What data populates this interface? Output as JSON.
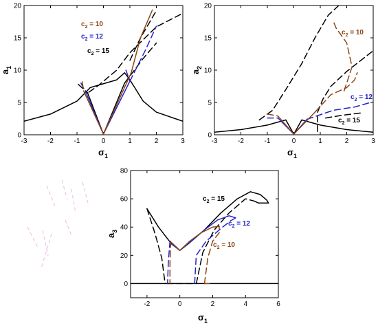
{
  "chart_data": [
    {
      "type": "line",
      "xlabel": "σ",
      "xlabel_sub": "1",
      "ylabel": "a",
      "ylabel_sub": "1",
      "xlim": [
        -3,
        3
      ],
      "ylim": [
        0,
        20
      ],
      "xticks": [
        "-3",
        "-2",
        "-1",
        "0",
        "1",
        "2",
        "3"
      ],
      "yticks": [
        "0",
        "5",
        "10",
        "15",
        "20"
      ],
      "labels": [
        {
          "prefix": "c",
          "sub": "2",
          "text": " = 10",
          "color": "#8B4513"
        },
        {
          "prefix": "c",
          "sub": "2",
          "text": " = 12",
          "color": "#2222cc"
        },
        {
          "prefix": "c",
          "sub": "2",
          "text": " = 15",
          "color": "#000000"
        }
      ],
      "series": [
        {
          "color": "#000000",
          "style": "solid",
          "points": [
            [
              -3,
              2.1
            ],
            [
              -2,
              3.2
            ],
            [
              -1,
              5.2
            ],
            [
              -0.5,
              7.3
            ],
            [
              0.5,
              8.5
            ],
            [
              0.8,
              9.6
            ],
            [
              1.0,
              8.5
            ],
            [
              1.5,
              5.2
            ],
            [
              2,
              3.5
            ],
            [
              3,
              2.1
            ]
          ]
        },
        {
          "color": "#000000",
          "style": "dash",
          "points": [
            [
              -0.55,
              6.6
            ],
            [
              -0.2,
              7.6
            ],
            [
              0.5,
              10
            ],
            [
              1,
              12.7
            ],
            [
              2,
              16.7
            ],
            [
              3,
              18.8
            ]
          ]
        },
        {
          "color": "#000000",
          "style": "solid",
          "points": [
            [
              -0.6,
              6.5
            ],
            [
              0,
              0.1
            ],
            [
              0.8,
              8.0
            ]
          ]
        },
        {
          "color": "#000000",
          "style": "dash",
          "points": [
            [
              -0.95,
              7.8
            ],
            [
              -0.6,
              6.5
            ]
          ]
        },
        {
          "color": "#000000",
          "style": "dash",
          "points": [
            [
              0.8,
              8.0
            ],
            [
              1.5,
              11.8
            ],
            [
              2,
              14.2
            ]
          ]
        },
        {
          "color": "#000000",
          "style": "dash",
          "points": [
            [
              1.0,
              11.5
            ],
            [
              1.4,
              15
            ],
            [
              2.0,
              19.2
            ]
          ]
        },
        {
          "color": "#2222cc",
          "style": "solid",
          "points": [
            [
              -0.65,
              6.4
            ],
            [
              0,
              0.1
            ],
            [
              1.0,
              8.3
            ]
          ]
        },
        {
          "color": "#2222cc",
          "style": "dash",
          "points": [
            [
              -0.85,
              8.0
            ],
            [
              -0.65,
              6.4
            ]
          ]
        },
        {
          "color": "#2222cc",
          "style": "dash",
          "points": [
            [
              1.0,
              8.3
            ],
            [
              1.6,
              13.2
            ],
            [
              2,
              16.8
            ]
          ]
        },
        {
          "color": "#2222cc",
          "style": "dash",
          "points": [
            [
              0.85,
              10
            ],
            [
              1.0,
              8.3
            ]
          ]
        },
        {
          "color": "#8B4513",
          "style": "solid",
          "points": [
            [
              -0.75,
              6.8
            ],
            [
              0,
              0.1
            ],
            [
              1.05,
              9.6
            ],
            [
              1.4,
              15
            ],
            [
              1.85,
              19.3
            ]
          ]
        },
        {
          "color": "#8B4513",
          "style": "dash",
          "points": [
            [
              -0.8,
              8.2
            ],
            [
              -0.75,
              6.8
            ]
          ]
        }
      ]
    },
    {
      "type": "line",
      "xlabel": "σ",
      "xlabel_sub": "1",
      "ylabel": "a",
      "ylabel_sub": "2",
      "xlim": [
        -3,
        3
      ],
      "ylim": [
        0,
        20
      ],
      "xticks": [
        "-3",
        "-2",
        "-1",
        "0",
        "1",
        "2",
        "3"
      ],
      "yticks": [
        "0",
        "5",
        "10",
        "15",
        "20"
      ],
      "labels": [
        {
          "prefix": "c",
          "sub": "2",
          "text": " = 10",
          "color": "#8B4513"
        },
        {
          "prefix": "c",
          "sub": "2",
          "text": " = 12",
          "color": "#2222cc"
        },
        {
          "prefix": "c",
          "sub": "2",
          "text": " = 15",
          "color": "#000000"
        }
      ],
      "series": [
        {
          "color": "#000000",
          "style": "solid",
          "points": [
            [
              -3,
              0.4
            ],
            [
              -2,
              0.8
            ],
            [
              -1,
              1.5
            ],
            [
              -0.3,
              2.3
            ],
            [
              0,
              0.1
            ]
          ]
        },
        {
          "color": "#000000",
          "style": "solid",
          "points": [
            [
              0,
              0.1
            ],
            [
              0.3,
              2.3
            ],
            [
              1,
              1.5
            ],
            [
              2,
              0.8
            ],
            [
              3,
              0.4
            ]
          ]
        },
        {
          "color": "#000000",
          "style": "dash",
          "points": [
            [
              -1.3,
              2.3
            ],
            [
              -0.8,
              3.8
            ],
            [
              -0.3,
              7
            ],
            [
              0.3,
              11
            ],
            [
              0.8,
              15
            ],
            [
              1.3,
              18.5
            ],
            [
              1.7,
              20
            ]
          ]
        },
        {
          "color": "#000000",
          "style": "dash",
          "points": [
            [
              0.9,
              0.5
            ],
            [
              0.9,
              3.5
            ],
            [
              1.1,
              5.5
            ],
            [
              1.4,
              7.5
            ],
            [
              2,
              9.8
            ],
            [
              3,
              13
            ]
          ]
        },
        {
          "color": "#000000",
          "style": "dash",
          "points": [
            [
              1.2,
              2.6
            ],
            [
              1.8,
              3.0
            ],
            [
              2.6,
              3.4
            ]
          ]
        },
        {
          "color": "#2222cc",
          "style": "solid",
          "points": [
            [
              -0.6,
              2.6
            ],
            [
              0,
              0.1
            ],
            [
              0.5,
              2.4
            ]
          ]
        },
        {
          "color": "#2222cc",
          "style": "dash",
          "points": [
            [
              0.5,
              2.4
            ],
            [
              1.5,
              3.8
            ],
            [
              2.3,
              4.3
            ],
            [
              2.9,
              5.0
            ]
          ]
        },
        {
          "color": "#2222cc",
          "style": "dash",
          "points": [
            [
              -1.0,
              2.6
            ],
            [
              -0.6,
              2.6
            ]
          ]
        },
        {
          "color": "#8B4513",
          "style": "solid",
          "points": [
            [
              -0.6,
              2.9
            ],
            [
              0,
              0.1
            ],
            [
              0.8,
              3.5
            ]
          ]
        },
        {
          "color": "#8B4513",
          "style": "dash",
          "points": [
            [
              -1.0,
              3.2
            ],
            [
              -0.6,
              2.9
            ]
          ]
        },
        {
          "color": "#8B4513",
          "style": "dash",
          "points": [
            [
              0.8,
              3.5
            ],
            [
              1.4,
              6.2
            ],
            [
              2.0,
              7.3
            ],
            [
              2.3,
              8.5
            ],
            [
              2.4,
              9.6
            ]
          ]
        },
        {
          "color": "#8B4513",
          "style": "dash",
          "points": [
            [
              1.9,
              6.8
            ],
            [
              2.2,
              10.5
            ],
            [
              2.0,
              14.2
            ],
            [
              1.6,
              16.5
            ],
            [
              1.5,
              17.5
            ]
          ]
        }
      ]
    },
    {
      "type": "line",
      "xlabel": "σ",
      "xlabel_sub": "1",
      "ylabel": "a",
      "ylabel_sub": "3",
      "xlim": [
        -3,
        6
      ],
      "ylim": [
        -10,
        80
      ],
      "xticks": [
        "-2",
        "0",
        "2",
        "4",
        "6"
      ],
      "yticks": [
        "0",
        "20",
        "40",
        "60",
        "80"
      ],
      "labels": [
        {
          "prefix": "c",
          "sub": "2",
          "text": " = 15",
          "color": "#000000"
        },
        {
          "prefix": "c",
          "sub": "2",
          "text": " = 12",
          "color": "#2222cc"
        },
        {
          "prefix": "c",
          "sub": "2",
          "text": " = 10",
          "color": "#8B4513"
        }
      ],
      "series": [
        {
          "color": "#000000",
          "style": "solid",
          "points": [
            [
              -3,
              0
            ],
            [
              6,
              0
            ]
          ]
        },
        {
          "color": "#000000",
          "style": "solid",
          "points": [
            [
              -2,
              53
            ],
            [
              -1.3,
              40
            ],
            [
              -0.5,
              28
            ],
            [
              0,
              23.5
            ],
            [
              0.5,
              28
            ],
            [
              1.5,
              38
            ],
            [
              2.5,
              50
            ],
            [
              3.5,
              60
            ],
            [
              4.3,
              65
            ],
            [
              4.9,
              63
            ],
            [
              5.3,
              59
            ],
            [
              5.4,
              57
            ],
            [
              4.8,
              57
            ],
            [
              4.5,
              58.5
            ]
          ]
        },
        {
          "color": "#000000",
          "style": "dash",
          "points": [
            [
              -2,
              53
            ],
            [
              -1.5,
              35
            ],
            [
              -1.1,
              18
            ],
            [
              -0.9,
              0
            ]
          ]
        },
        {
          "color": "#000000",
          "style": "dash",
          "points": [
            [
              -0.8,
              0
            ],
            [
              -0.3,
              0
            ],
            [
              0.2,
              0
            ],
            [
              0.9,
              0
            ]
          ]
        },
        {
          "color": "#000000",
          "style": "dash",
          "points": [
            [
              1.0,
              0
            ],
            [
              1.4,
              22
            ],
            [
              2.1,
              38
            ],
            [
              3.0,
              50
            ],
            [
              4.0,
              60
            ],
            [
              4.5,
              58.5
            ]
          ]
        },
        {
          "color": "#2222cc",
          "style": "solid",
          "points": [
            [
              -0.5,
              28
            ],
            [
              0,
              23.5
            ],
            [
              0.6,
              29
            ],
            [
              1.5,
              38
            ],
            [
              2.3,
              45
            ],
            [
              3.0,
              48
            ],
            [
              3.4,
              46.5
            ],
            [
              3.1,
              44.5
            ]
          ]
        },
        {
          "color": "#2222cc",
          "style": "dash",
          "points": [
            [
              -0.6,
              30
            ],
            [
              -0.7,
              15
            ],
            [
              -0.75,
              0
            ]
          ]
        },
        {
          "color": "#2222cc",
          "style": "dash",
          "points": [
            [
              0.9,
              0
            ],
            [
              1.0,
              20
            ],
            [
              1.6,
              30
            ],
            [
              2.5,
              39
            ],
            [
              3.1,
              44.5
            ]
          ]
        },
        {
          "color": "#8B4513",
          "style": "solid",
          "points": [
            [
              -0.5,
              29
            ],
            [
              0,
              23.5
            ],
            [
              0.6,
              30
            ],
            [
              1.3,
              36
            ],
            [
              2.0,
              40
            ],
            [
              2.4,
              40.5
            ]
          ]
        },
        {
          "color": "#8B4513",
          "style": "dash",
          "points": [
            [
              -0.55,
              30
            ],
            [
              -0.6,
              15
            ],
            [
              -0.6,
              0
            ]
          ]
        },
        {
          "color": "#8B4513",
          "style": "dash",
          "points": [
            [
              1.5,
              0
            ],
            [
              1.7,
              18
            ],
            [
              2.0,
              30
            ],
            [
              2.4,
              36
            ],
            [
              2.4,
              40.5
            ]
          ]
        },
        {
          "color": "#8B4513",
          "style": "dash",
          "points": [
            [
              1.5,
              0
            ],
            [
              1.8,
              0
            ]
          ]
        }
      ]
    }
  ]
}
